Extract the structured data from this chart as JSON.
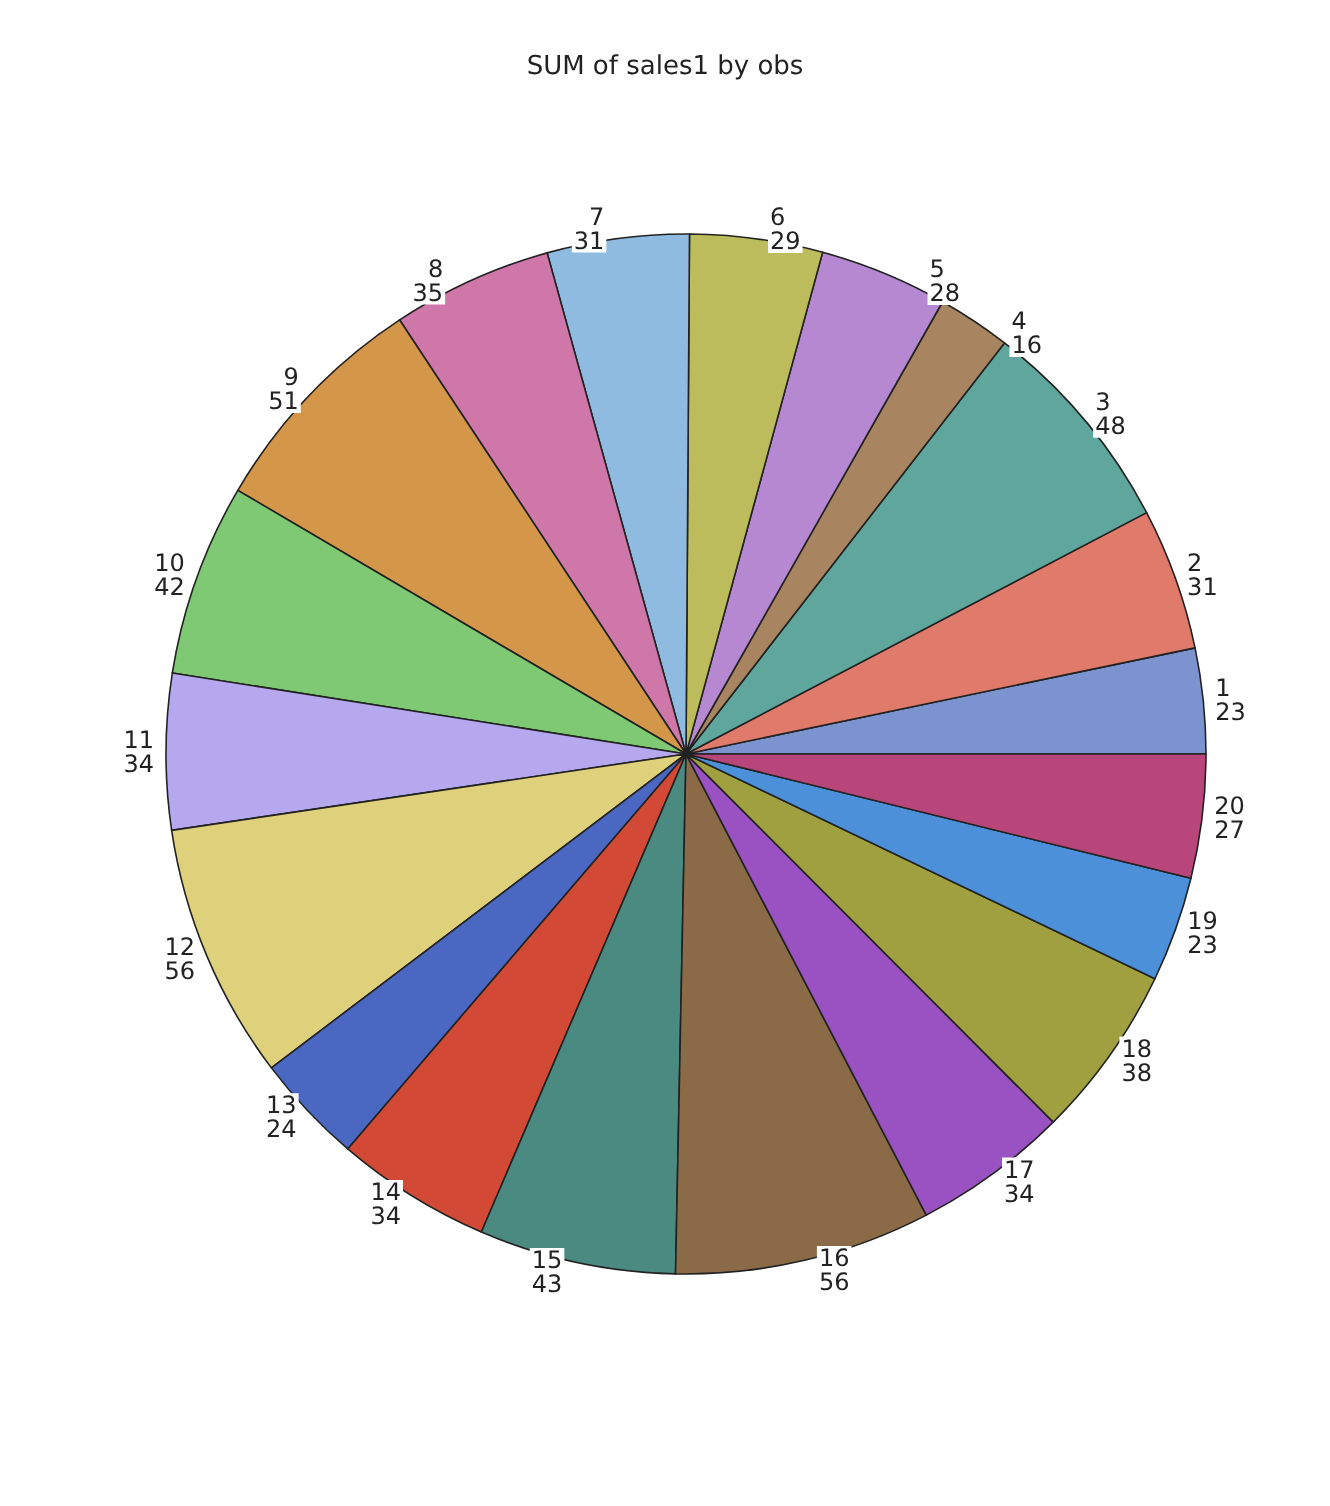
{
  "chart_data": {
    "type": "pie",
    "title": "SUM of sales1 by obs",
    "categories": [
      "1",
      "2",
      "3",
      "4",
      "5",
      "6",
      "7",
      "8",
      "9",
      "10",
      "11",
      "12",
      "13",
      "14",
      "15",
      "16",
      "17",
      "18",
      "19",
      "20"
    ],
    "values": [
      23,
      31,
      48,
      16,
      28,
      29,
      31,
      35,
      51,
      42,
      34,
      56,
      24,
      34,
      43,
      56,
      34,
      38,
      23,
      27
    ],
    "colors": [
      "#7b93cf",
      "#e07a6a",
      "#5fa69c",
      "#a88560",
      "#b788d2",
      "#bcbc5c",
      "#8fbbe0",
      "#cf77a8",
      "#d4974a",
      "#7fc874",
      "#b5a8ef",
      "#dfd07c",
      "#4a68c2",
      "#d24a35",
      "#4a8a80",
      "#8b6a48",
      "#9a52c2",
      "#a0a040",
      "#4b90d8",
      "#b8467a"
    ],
    "data_labels": true
  }
}
